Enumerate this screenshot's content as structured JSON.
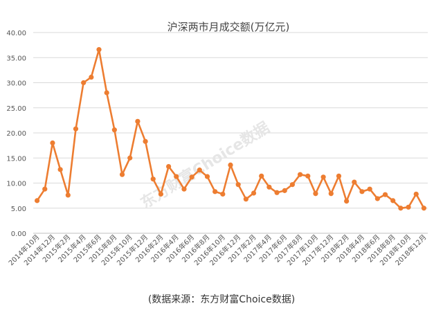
{
  "chart_data": {
    "type": "line",
    "title": "沪深两市月成交额(万亿元)",
    "xlabel": "",
    "ylabel": "",
    "ylim": [
      0,
      40
    ],
    "yticks": [
      "0.00",
      "5.00",
      "10.00",
      "15.00",
      "20.00",
      "25.00",
      "30.00",
      "35.00",
      "40.00"
    ],
    "grid": true,
    "x": [
      "2014年10月",
      "2014年11月",
      "2014年12月",
      "2015年1月",
      "2015年2月",
      "2015年3月",
      "2015年4月",
      "2015年5月",
      "2015年6月",
      "2015年7月",
      "2015年8月",
      "2015年9月",
      "2015年10月",
      "2015年11月",
      "2015年12月",
      "2016年1月",
      "2016年2月",
      "2016年3月",
      "2016年4月",
      "2016年5月",
      "2016年6月",
      "2016年7月",
      "2016年8月",
      "2016年9月",
      "2016年10月",
      "2016年11月",
      "2016年12月",
      "2017年1月",
      "2017年2月",
      "2017年3月",
      "2017年4月",
      "2017年5月",
      "2017年6月",
      "2017年7月",
      "2017年8月",
      "2017年9月",
      "2017年10月",
      "2017年11月",
      "2017年12月",
      "2018年1月",
      "2018年2月",
      "2018年3月",
      "2018年4月",
      "2018年5月",
      "2018年6月",
      "2018年7月",
      "2018年8月",
      "2018年9月",
      "2018年10月",
      "2018年11月",
      "2018年12月"
    ],
    "xtick_labels": [
      "2014年10月",
      "2014年12月",
      "2015年2月",
      "2015年4月",
      "2015年6月",
      "2015年8月",
      "2015年10月",
      "2015年12月",
      "2016年2月",
      "2016年4月",
      "2016年6月",
      "2016年8月",
      "2016年10月",
      "2016年12月",
      "2017年2月",
      "2017年4月",
      "2017年6月",
      "2017年8月",
      "2017年10月",
      "2017年12月",
      "2018年2月",
      "2018年4月",
      "2018年6月",
      "2018年8月",
      "2018年10月",
      "2018年12月"
    ],
    "series": [
      {
        "values": [
          6.5,
          8.8,
          18.0,
          12.7,
          7.6,
          20.8,
          30.0,
          31.1,
          36.6,
          28.0,
          20.6,
          11.7,
          15.0,
          22.3,
          18.3,
          10.8,
          7.8,
          13.3,
          11.3,
          8.8,
          11.2,
          12.6,
          11.3,
          8.3,
          7.8,
          13.6,
          9.7,
          6.8,
          8.0,
          11.4,
          9.2,
          8.1,
          8.5,
          9.7,
          11.7,
          11.4,
          7.9,
          11.2,
          7.9,
          11.4,
          6.4,
          10.2,
          8.3,
          8.8,
          6.9,
          7.7,
          6.5,
          5.0,
          5.2,
          7.8,
          5.0
        ]
      }
    ],
    "line_color": "#ed7d31",
    "grid_color": "#d9d9d9"
  },
  "watermark": "东方财富Choice数据",
  "source": "(数据来源：东方财富Choice数据)"
}
